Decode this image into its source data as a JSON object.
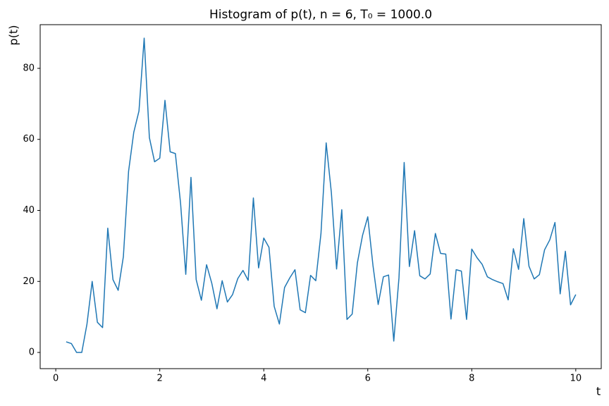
{
  "chart_data": {
    "type": "line",
    "title": "Histogram of p(t), n = 6, T₀ = 1000.0",
    "xlabel": "t",
    "ylabel": "p(t)",
    "x": [
      0.2,
      0.3,
      0.4,
      0.5,
      0.6,
      0.7,
      0.8,
      0.9,
      1.0,
      1.1,
      1.2,
      1.3,
      1.4,
      1.5,
      1.6,
      1.7,
      1.8,
      1.9,
      2.0,
      2.1,
      2.2,
      2.3,
      2.4,
      2.5,
      2.6,
      2.7,
      2.8,
      2.9,
      3.0,
      3.1,
      3.2,
      3.3,
      3.4,
      3.5,
      3.6,
      3.7,
      3.8,
      3.9,
      4.0,
      4.1,
      4.2,
      4.3,
      4.4,
      4.5,
      4.6,
      4.7,
      4.8,
      4.9,
      5.0,
      5.1,
      5.2,
      5.3,
      5.4,
      5.5,
      5.6,
      5.7,
      5.8,
      5.9,
      6.0,
      6.1,
      6.2,
      6.3,
      6.4,
      6.5,
      6.6,
      6.7,
      6.8,
      6.9,
      7.0,
      7.1,
      7.2,
      7.3,
      7.4,
      7.5,
      7.6,
      7.7,
      7.8,
      7.9,
      8.0,
      8.1,
      8.2,
      8.3,
      8.4,
      8.5,
      8.6,
      8.7,
      8.8,
      8.9,
      9.0,
      9.1,
      9.2,
      9.3,
      9.4,
      9.5,
      9.6,
      9.7,
      9.8,
      9.9,
      10.0
    ],
    "series": [
      {
        "color": "#1f77b4",
        "values": [
          3,
          2.5,
          0,
          0,
          8,
          20,
          8.5,
          7,
          35,
          20.5,
          17.5,
          27,
          51,
          62,
          68,
          88.5,
          60.5,
          53.7,
          54.7,
          71,
          56.5,
          56,
          42,
          22,
          49.3,
          20.5,
          14.7,
          24.7,
          19.5,
          12.3,
          20.2,
          14.2,
          16.3,
          20.8,
          23.1,
          20.3,
          43.5,
          23.8,
          32.2,
          29.6,
          13,
          8,
          18.3,
          21,
          23.3,
          12,
          11.2,
          21.7,
          20.2,
          33.5,
          59,
          45,
          23.5,
          40.2,
          9.3,
          10.8,
          25.2,
          33,
          38.2,
          24.5,
          13.5,
          21.3,
          21.8,
          3.2,
          21,
          53.5,
          24.2,
          34.3,
          21.6,
          20.7,
          22.1,
          33.5,
          27.9,
          27.7,
          9.4,
          23.3,
          22.9,
          9.3,
          29.1,
          26.7,
          24.8,
          21.3,
          20.5,
          19.9,
          19.4,
          14.8,
          29.2,
          23.4,
          37.7,
          24.3,
          20.7,
          21.9,
          28.9,
          31.7,
          36.6,
          16.5,
          28.5,
          13.4,
          16.3
        ]
      }
    ],
    "xlim": [
      -0.3,
      10.49
    ],
    "ylim": [
      -4.56,
      92.3
    ],
    "xticks": [
      0,
      2,
      4,
      6,
      8,
      10
    ],
    "yticks": [
      0,
      20,
      40,
      60,
      80
    ]
  }
}
